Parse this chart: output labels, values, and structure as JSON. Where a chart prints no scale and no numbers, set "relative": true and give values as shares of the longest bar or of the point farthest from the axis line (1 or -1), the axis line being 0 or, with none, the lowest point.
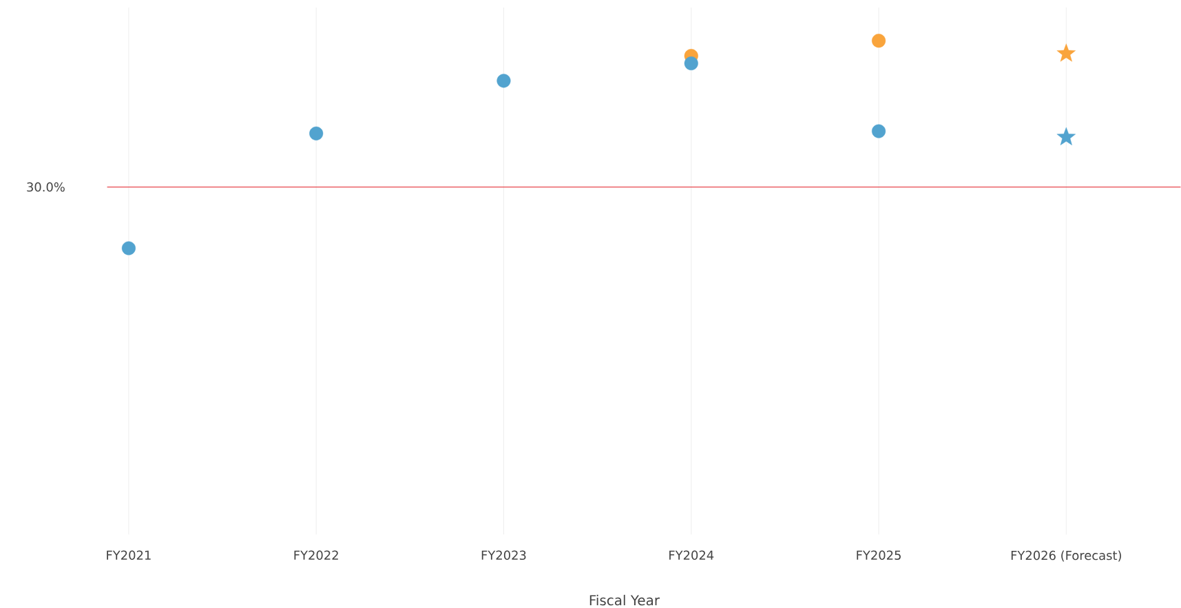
{
  "chart_data": {
    "type": "scatter",
    "relative": true,
    "xlabel": "Fiscal Year",
    "categories": [
      "FY2021",
      "FY2022",
      "FY2023",
      "FY2024",
      "FY2025",
      "FY2026 (Forecast)"
    ],
    "series": [
      {
        "color": "#f9a43c",
        "marker": "circle",
        "values": [
          null,
          null,
          null,
          0.927,
          1,
          null
        ]
      },
      {
        "color": "#52a3cf",
        "marker": "circle",
        "values": [
          0,
          0.553,
          0.807,
          0.891,
          0.564,
          null
        ]
      },
      {
        "color": "#f9a43c",
        "marker": "star",
        "values": [
          null,
          null,
          null,
          null,
          null,
          0.938
        ]
      },
      {
        "color": "#52a3cf",
        "marker": "star",
        "values": [
          null,
          null,
          null,
          null,
          null,
          0.535
        ]
      }
    ],
    "ref_lines": [
      {
        "axis": "y",
        "value": 0.295,
        "color": "#e8474c"
      }
    ],
    "annotations": [
      "30.0%"
    ],
    "grid": "x"
  }
}
